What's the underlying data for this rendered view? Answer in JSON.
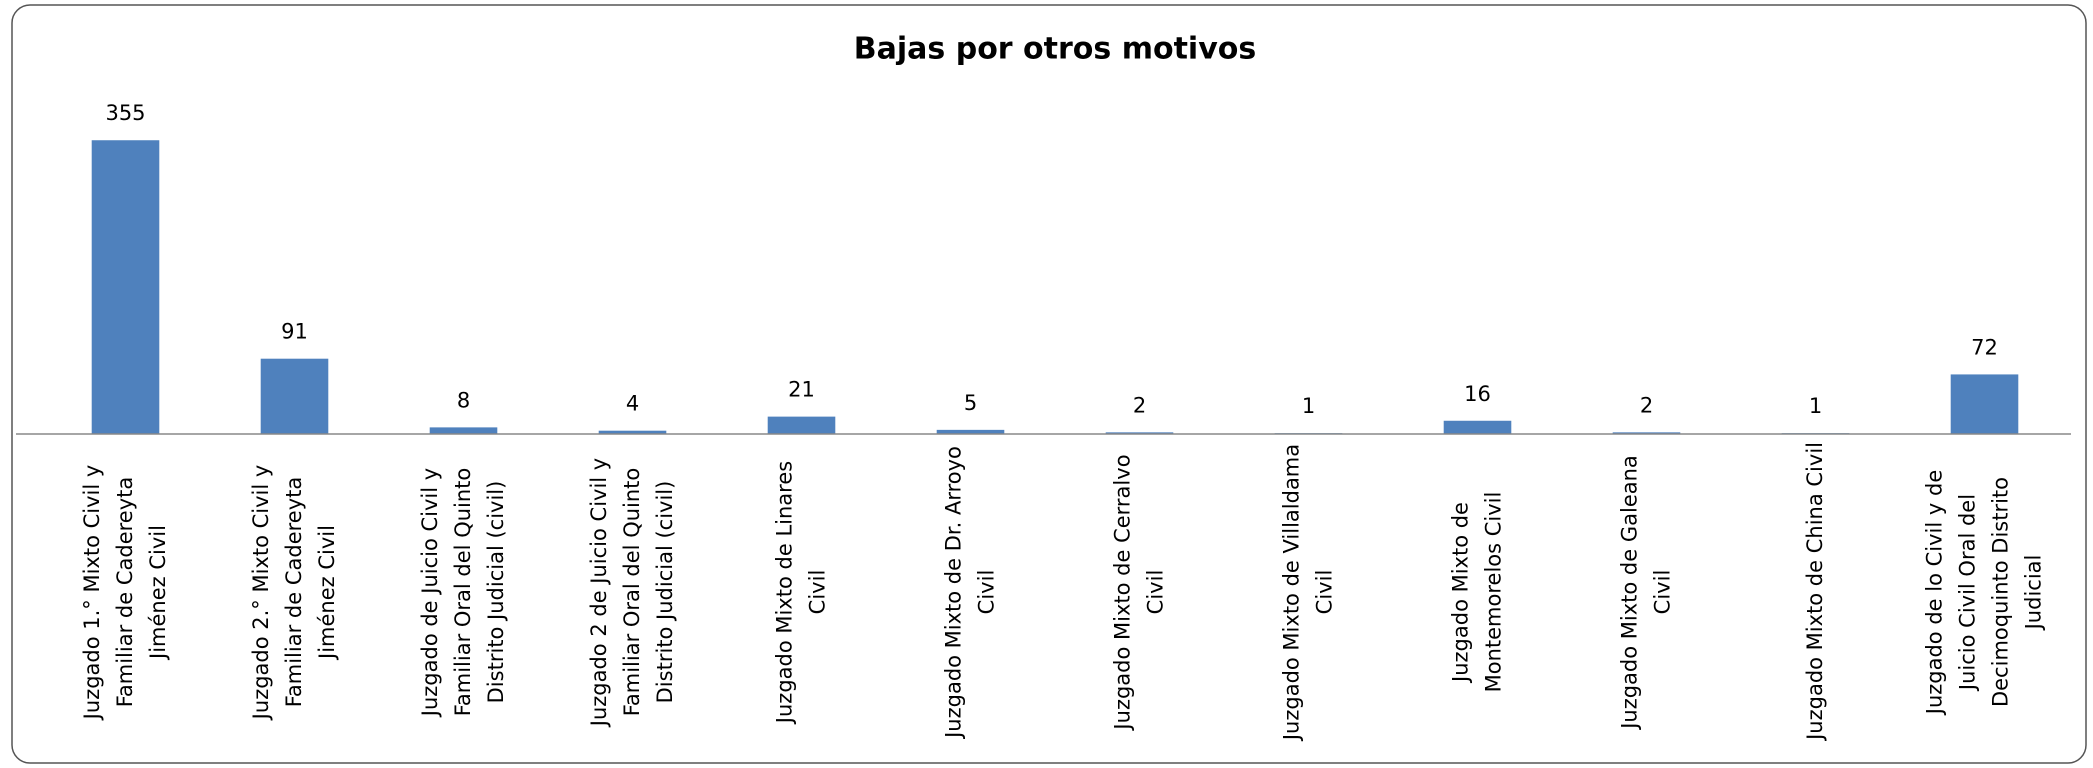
{
  "chart_data": {
    "type": "bar",
    "title": "Bajas por otros motivos",
    "categories": [
      "Juzgado 1.° Mixto Civil y Familiar de Cadereyta Jiménez Civil",
      "Juzgado 2.° Mixto Civil y Familiar de Cadereyta Jiménez Civil",
      "Juzgado de Juicio Civil y Familiar Oral del Quinto Distrito Judicial (civil)",
      "Juzgado 2 de Juicio Civil y Familiar Oral del Quinto Distrito Judicial (civil)",
      "Juzgado Mixto de Linares Civil",
      "Juzgado Mixto de Dr. Arroyo Civil",
      "Juzgado Mixto de Cerralvo Civil",
      "Juzgado Mixto de Villaldama Civil",
      "Juzgado Mixto de Montemorelos Civil",
      "Juzgado Mixto de Galeana Civil",
      "Juzgado Mixto de China Civil",
      "Juzgado de lo Civil y de Juicio Civil Oral del Decimoquinto Distrito Judicial"
    ],
    "values": [
      355,
      91,
      8,
      4,
      21,
      5,
      2,
      1,
      16,
      2,
      1,
      72
    ],
    "color": "#4f81bd",
    "ylim": [
      0,
      400
    ]
  }
}
